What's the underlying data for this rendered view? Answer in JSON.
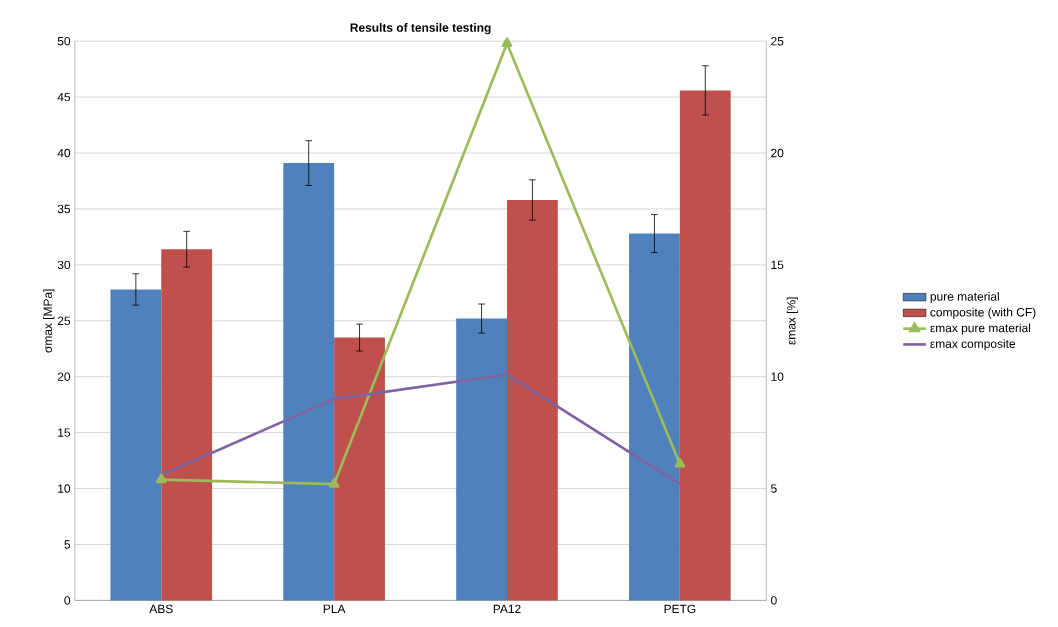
{
  "chart_data": {
    "type": "bar",
    "title": "Results of tensile testing",
    "ylabel": "σmax  [MPa]",
    "y2label": "εmax  [%]",
    "categories": [
      "ABS",
      "PLA",
      "PA12",
      "PETG"
    ],
    "series": [
      {
        "name": "pure material",
        "color": "#4f81bd",
        "values": [
          27.8,
          39.1,
          25.2,
          32.8
        ],
        "errors": [
          1.4,
          2.0,
          1.3,
          1.7
        ]
      },
      {
        "name": "composite (with CF)",
        "color": "#c0504d",
        "values": [
          31.4,
          23.5,
          35.8,
          45.6
        ],
        "errors": [
          1.6,
          1.2,
          1.8,
          2.2
        ]
      },
      {
        "name": "εmax pure material",
        "type": "line",
        "axis": "y2",
        "marker": "triangle",
        "color": "#9bbb59",
        "values": [
          5.4,
          5.2,
          24.9,
          6.1
        ]
      },
      {
        "name": "εmax composite",
        "type": "line",
        "axis": "y2",
        "marker": "none",
        "color": "#8064a2",
        "values": [
          5.6,
          9.0,
          10.1,
          5.2
        ]
      }
    ],
    "ylim": [
      0,
      50
    ],
    "yticks": [
      0,
      5,
      10,
      15,
      20,
      25,
      30,
      35,
      40,
      45,
      50
    ],
    "y2lim": [
      0,
      25
    ],
    "y2ticks": [
      0,
      5,
      10,
      15,
      20,
      25
    ],
    "grid": "y",
    "legend": "right"
  }
}
